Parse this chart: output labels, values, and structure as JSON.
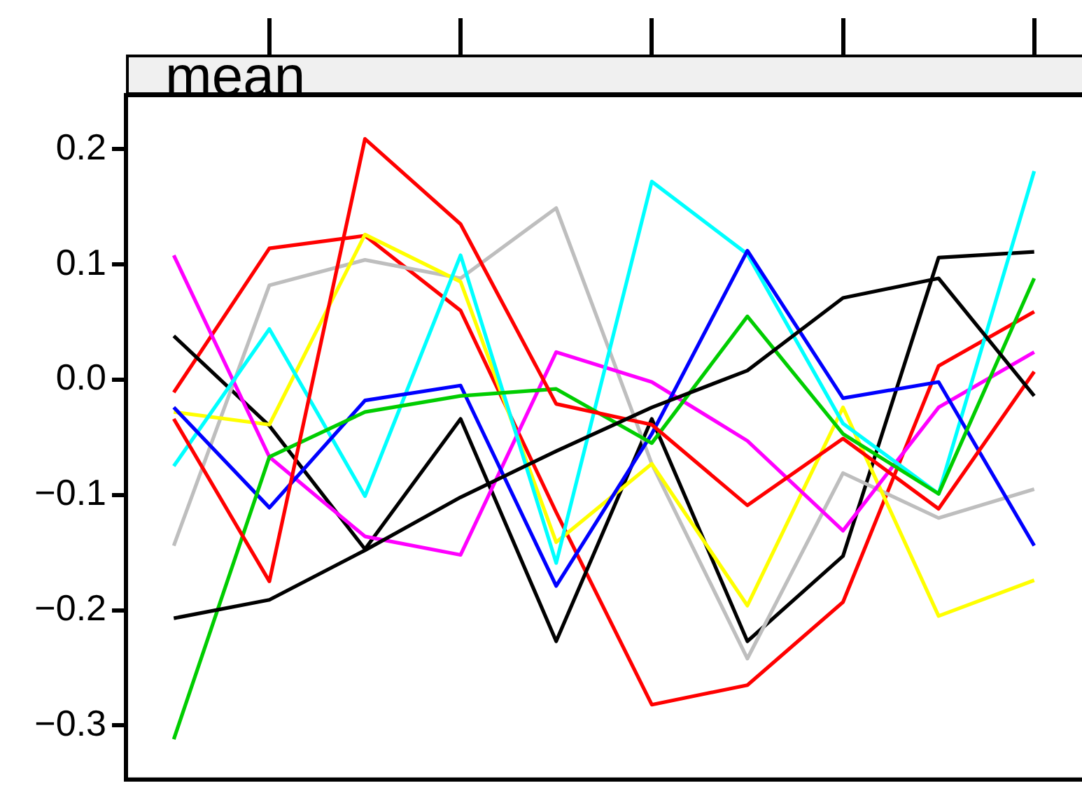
{
  "chart_data": {
    "type": "line",
    "title": "mean",
    "categories": [
      null,
      null,
      null,
      null,
      null,
      null,
      null,
      null,
      null,
      null
    ],
    "ylim": [
      -0.347,
      0.247
    ],
    "yticks": [
      {
        "value": -0.3,
        "label": "−0.3"
      },
      {
        "value": -0.2,
        "label": "−0.2"
      },
      {
        "value": -0.1,
        "label": "−0.1"
      },
      {
        "value": 0,
        "label": "0.0"
      },
      {
        "value": 0.1,
        "label": "0.1"
      },
      {
        "value": 0.2,
        "label": "0.2"
      }
    ],
    "tick_labels": "y",
    "grid": false,
    "legend": false,
    "marker": "none",
    "line_style": "solid",
    "series": [
      {
        "color": "#000000",
        "values": [
          -0.207,
          -0.191,
          -0.148,
          -0.102,
          -0.062,
          -0.024,
          0.008,
          0.071,
          0.088,
          -0.014
        ]
      },
      {
        "color": "#ff0000",
        "values": [
          -0.034,
          -0.175,
          0.209,
          0.135,
          -0.021,
          -0.039,
          -0.109,
          -0.051,
          -0.112,
          0.007
        ]
      },
      {
        "color": "#00cd00",
        "values": [
          -0.312,
          -0.067,
          -0.028,
          -0.014,
          -0.008,
          -0.055,
          0.055,
          -0.047,
          -0.099,
          0.088
        ]
      },
      {
        "color": "#0000ff",
        "values": [
          -0.024,
          -0.111,
          -0.018,
          -0.005,
          -0.179,
          -0.047,
          0.112,
          -0.016,
          -0.002,
          -0.144
        ]
      },
      {
        "color": "#00ffff",
        "values": [
          -0.075,
          0.044,
          -0.101,
          0.108,
          -0.159,
          0.172,
          0.109,
          -0.038,
          -0.099,
          0.181
        ]
      },
      {
        "color": "#ff00ff",
        "values": [
          0.108,
          -0.067,
          -0.136,
          -0.152,
          0.024,
          -0.002,
          -0.053,
          -0.131,
          -0.024,
          0.024
        ]
      },
      {
        "color": "#ffff00",
        "values": [
          -0.028,
          -0.039,
          0.126,
          0.085,
          -0.141,
          -0.073,
          -0.196,
          -0.024,
          -0.205,
          -0.174
        ]
      },
      {
        "color": "#bebebe",
        "values": [
          -0.144,
          0.082,
          0.104,
          0.088,
          0.149,
          -0.073,
          -0.242,
          -0.081,
          -0.12,
          -0.095
        ]
      },
      {
        "color": "#000000",
        "values": [
          0.038,
          -0.04,
          -0.147,
          -0.034,
          -0.227,
          -0.034,
          -0.227,
          -0.153,
          0.106,
          0.111
        ]
      },
      {
        "color": "#ff0000",
        "values": [
          -0.011,
          0.114,
          0.125,
          0.06,
          -0.115,
          -0.282,
          -0.265,
          -0.193,
          0.012,
          0.059
        ]
      }
    ]
  }
}
